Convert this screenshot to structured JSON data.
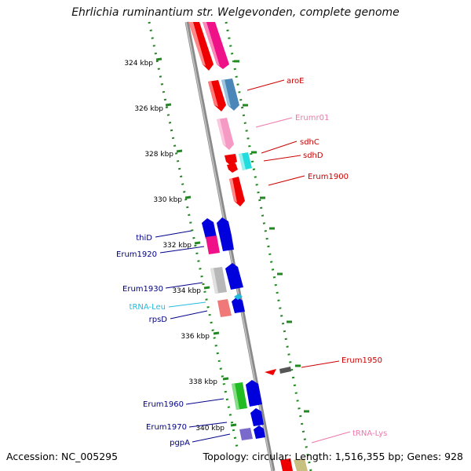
{
  "title": "Ehrlichia ruminantium str. Welgevonden, complete genome",
  "footer": {
    "accession": "Accession: NC_005295",
    "topology": "Topology: circular; Length: 1,516,355 bp; Genes: 928"
  },
  "ticks": [
    "324 kbp",
    "326 kbp",
    "328 kbp",
    "330 kbp",
    "332 kbp",
    "334 kbp",
    "336 kbp",
    "338 kbp",
    "340 kbp"
  ],
  "gene_labels": {
    "aroE": "aroE",
    "Erumr01": "Erumr01",
    "sdhC": "sdhC",
    "sdhD": "sdhD",
    "Erum1900": "Erum1900",
    "thiD": "thiD",
    "Erum1920": "Erum1920",
    "Erum1930": "Erum1930",
    "tRNA_Leu": "tRNA-Leu",
    "rpsD": "rpsD",
    "Erum1950": "Erum1950",
    "Erum1960": "Erum1960",
    "Erum1970": "Erum1970",
    "pgpA": "pgpA",
    "tRNA_Lys": "tRNA-Lys"
  },
  "colors": {
    "red": "#ee0000",
    "pink": "#ee1188",
    "lightpink": "#f59ac4",
    "steelblue": "#4a86b8",
    "cyan": "#22dddd",
    "blue": "#0000dd",
    "green": "#22bb22",
    "gray": "#b8b8b8",
    "darkgray": "#555555",
    "salmon": "#f07878",
    "purple": "#7a6acc",
    "khaki": "#c8c080",
    "backbone": "#8a8a8a",
    "dots": "#228822"
  }
}
